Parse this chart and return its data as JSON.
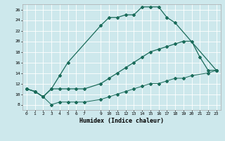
{
  "xlabel": "Humidex (Indice chaleur)",
  "bg_color": "#cde8ec",
  "line_color": "#1a6b5a",
  "grid_color": "#ffffff",
  "xlim": [
    -0.5,
    23.5
  ],
  "ylim": [
    7.0,
    27.0
  ],
  "yticks": [
    8,
    10,
    12,
    14,
    16,
    18,
    20,
    22,
    24,
    26
  ],
  "xticks": [
    0,
    1,
    2,
    3,
    4,
    5,
    6,
    7,
    9,
    10,
    11,
    12,
    13,
    14,
    15,
    16,
    17,
    18,
    19,
    20,
    21,
    22,
    23
  ],
  "line1_x": [
    0,
    1,
    2,
    3,
    4,
    5,
    9,
    10,
    11,
    12,
    13,
    14,
    15,
    16,
    17,
    18,
    23
  ],
  "line1_y": [
    11,
    10.5,
    9.5,
    11.0,
    13.5,
    16.0,
    23.0,
    24.5,
    24.5,
    25.0,
    25.0,
    26.5,
    26.5,
    26.5,
    24.5,
    23.5,
    14.5
  ],
  "line2_x": [
    0,
    1,
    2,
    3,
    4,
    5,
    6,
    7,
    9,
    10,
    11,
    12,
    13,
    14,
    15,
    16,
    17,
    18,
    19,
    20,
    21,
    22,
    23
  ],
  "line2_y": [
    11,
    10.5,
    9.5,
    11.0,
    11.0,
    11.0,
    11.0,
    11.0,
    12.0,
    13.0,
    14.0,
    15.0,
    16.0,
    17.0,
    18.0,
    18.5,
    19.0,
    19.5,
    20.0,
    20.0,
    17.0,
    14.5,
    14.5
  ],
  "line3_x": [
    0,
    1,
    2,
    3,
    4,
    5,
    6,
    7,
    9,
    10,
    11,
    12,
    13,
    14,
    15,
    16,
    17,
    18,
    19,
    20,
    22,
    23
  ],
  "line3_y": [
    11,
    10.5,
    9.5,
    8.0,
    8.5,
    8.5,
    8.5,
    8.5,
    9.0,
    9.5,
    10.0,
    10.5,
    11.0,
    11.5,
    12.0,
    12.0,
    12.5,
    13.0,
    13.0,
    13.5,
    14.0,
    14.5
  ]
}
